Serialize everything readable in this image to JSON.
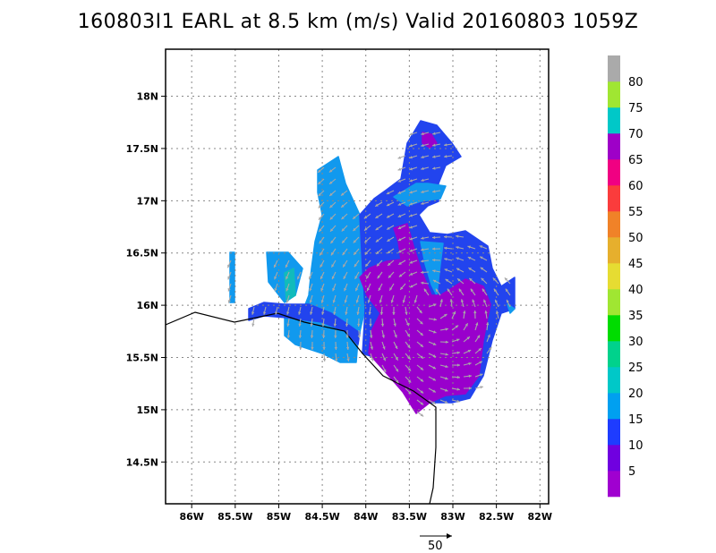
{
  "title": "160803I1 EARL at 8.5 km (m/s) Valid 20160803 1059Z",
  "map": {
    "lon_range": [
      -86.3,
      -81.9
    ],
    "lat_range": [
      14.1,
      18.45
    ],
    "lon_ticks": [
      {
        "value": -86.0,
        "label": "86W"
      },
      {
        "value": -85.5,
        "label": "85.5W"
      },
      {
        "value": -85.0,
        "label": "85W"
      },
      {
        "value": -84.5,
        "label": "84.5W"
      },
      {
        "value": -84.0,
        "label": "84W"
      },
      {
        "value": -83.5,
        "label": "83.5W"
      },
      {
        "value": -83.0,
        "label": "83W"
      },
      {
        "value": -82.5,
        "label": "82.5W"
      },
      {
        "value": -82.0,
        "label": "82W"
      }
    ],
    "lat_ticks": [
      {
        "value": 18.0,
        "label": "18N"
      },
      {
        "value": 17.5,
        "label": "17.5N"
      },
      {
        "value": 17.0,
        "label": "17N"
      },
      {
        "value": 16.5,
        "label": "16.5N"
      },
      {
        "value": 16.0,
        "label": "16N"
      },
      {
        "value": 15.5,
        "label": "15.5N"
      },
      {
        "value": 15.0,
        "label": "15N"
      },
      {
        "value": 14.5,
        "label": "14.5N"
      }
    ],
    "grid": true,
    "wind_field_colors": [
      "#9900cc",
      "#2244ee",
      "#1199ee",
      "#11bbbb"
    ]
  },
  "colorbar": {
    "labels": [
      "5",
      "10",
      "15",
      "20",
      "25",
      "30",
      "35",
      "40",
      "45",
      "50",
      "55",
      "60",
      "65",
      "70",
      "75",
      "80"
    ],
    "colors": [
      "#a000d0",
      "#7000e0",
      "#1e3cff",
      "#00a0f0",
      "#00c8c8",
      "#00d28c",
      "#00dc00",
      "#a0e632",
      "#e6dc32",
      "#e6af2d",
      "#f08228",
      "#fa3c3c",
      "#f00082",
      "#9e00c8",
      "#00c8c8",
      "#a0e632",
      "#aaaaaa"
    ]
  },
  "reference_vector": {
    "label": "50"
  }
}
